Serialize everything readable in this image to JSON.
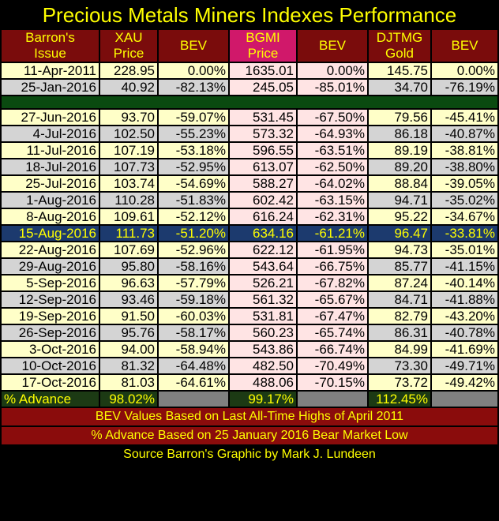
{
  "title": "Precious Metals Miners Indexes Performance",
  "headers": [
    [
      "Barron's",
      "Issue"
    ],
    [
      "XAU",
      "Price"
    ],
    [
      "BEV",
      ""
    ],
    [
      "BGMI",
      "Price"
    ],
    [
      "BEV",
      ""
    ],
    [
      "DJTMG",
      "Gold"
    ],
    [
      "BEV",
      ""
    ]
  ],
  "top_rows": [
    [
      "11-Apr-2011",
      "228.95",
      "0.00%",
      "1635.01",
      "0.00%",
      "145.75",
      "0.00%"
    ],
    [
      "25-Jan-2016",
      "40.92",
      "-82.13%",
      "245.05",
      "-85.01%",
      "34.70",
      "-76.19%"
    ]
  ],
  "rows": [
    [
      "27-Jun-2016",
      "93.70",
      "-59.07%",
      "531.45",
      "-67.50%",
      "79.56",
      "-45.41%"
    ],
    [
      "4-Jul-2016",
      "102.50",
      "-55.23%",
      "573.32",
      "-64.93%",
      "86.18",
      "-40.87%"
    ],
    [
      "11-Jul-2016",
      "107.19",
      "-53.18%",
      "596.55",
      "-63.51%",
      "89.19",
      "-38.81%"
    ],
    [
      "18-Jul-2016",
      "107.73",
      "-52.95%",
      "613.07",
      "-62.50%",
      "89.20",
      "-38.80%"
    ],
    [
      "25-Jul-2016",
      "103.74",
      "-54.69%",
      "588.27",
      "-64.02%",
      "88.84",
      "-39.05%"
    ],
    [
      "1-Aug-2016",
      "110.28",
      "-51.83%",
      "602.42",
      "-63.15%",
      "94.71",
      "-35.02%"
    ],
    [
      "8-Aug-2016",
      "109.61",
      "-52.12%",
      "616.24",
      "-62.31%",
      "95.22",
      "-34.67%"
    ],
    [
      "15-Aug-2016",
      "111.73",
      "-51.20%",
      "634.16",
      "-61.21%",
      "96.47",
      "-33.81%"
    ],
    [
      "22-Aug-2016",
      "107.69",
      "-52.96%",
      "622.12",
      "-61.95%",
      "94.73",
      "-35.01%"
    ],
    [
      "29-Aug-2016",
      "95.80",
      "-58.16%",
      "543.64",
      "-66.75%",
      "85.77",
      "-41.15%"
    ],
    [
      "5-Sep-2016",
      "96.63",
      "-57.79%",
      "526.21",
      "-67.82%",
      "87.24",
      "-40.14%"
    ],
    [
      "12-Sep-2016",
      "93.46",
      "-59.18%",
      "561.32",
      "-65.67%",
      "84.71",
      "-41.88%"
    ],
    [
      "19-Sep-2016",
      "91.50",
      "-60.03%",
      "531.81",
      "-67.47%",
      "82.79",
      "-43.20%"
    ],
    [
      "26-Sep-2016",
      "95.76",
      "-58.17%",
      "560.23",
      "-65.74%",
      "86.31",
      "-40.78%"
    ],
    [
      "3-Oct-2016",
      "94.00",
      "-58.94%",
      "543.86",
      "-66.74%",
      "84.99",
      "-41.69%"
    ],
    [
      "10-Oct-2016",
      "81.32",
      "-64.48%",
      "482.50",
      "-70.49%",
      "73.30",
      "-49.71%"
    ],
    [
      "17-Oct-2016",
      "81.03",
      "-64.61%",
      "488.06",
      "-70.15%",
      "73.72",
      "-49.42%"
    ]
  ],
  "advance": {
    "label": "% Advance",
    "xau": "98.02%",
    "bgmi": "99.17%",
    "djtmg": "112.45%"
  },
  "notes": [
    "BEV Values Based on Last All-Time Highs of April 2011",
    "% Advance Based on 25 January 2016 Bear Market Low"
  ],
  "source": "Source Barron's   Graphic by Mark J. Lundeen"
}
